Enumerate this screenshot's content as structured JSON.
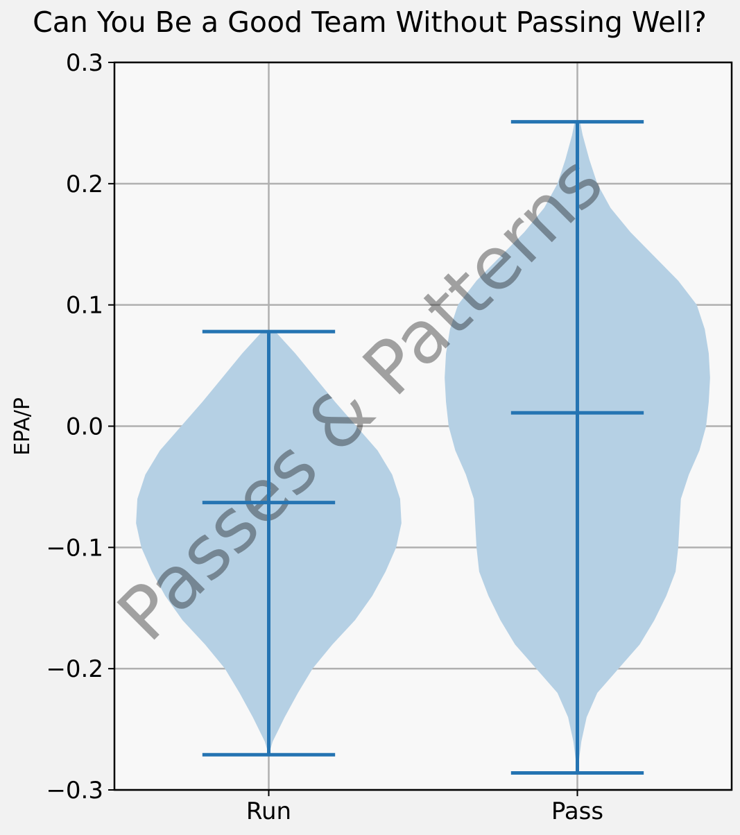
{
  "chart_data": {
    "type": "violin",
    "title": "Can You Be a Good Team Without Passing Well?",
    "xlabel": "",
    "ylabel": "EPA/P",
    "ylim": [
      -0.3,
      0.3
    ],
    "yticks": [
      0.3,
      0.2,
      0.1,
      0.0,
      -0.1,
      -0.2,
      -0.3
    ],
    "ytick_labels": [
      "0.3",
      "0.2",
      "0.1",
      "0.0",
      "−0.1",
      "−0.2",
      "−0.3"
    ],
    "categories": [
      "Run",
      "Pass"
    ],
    "grid": true,
    "series": [
      {
        "category": "Run",
        "min": -0.271,
        "max": 0.078,
        "median": -0.063,
        "density": [
          [
            -0.271,
            0.0
          ],
          [
            -0.26,
            0.03
          ],
          [
            -0.24,
            0.12
          ],
          [
            -0.22,
            0.22
          ],
          [
            -0.2,
            0.33
          ],
          [
            -0.18,
            0.48
          ],
          [
            -0.16,
            0.65
          ],
          [
            -0.14,
            0.78
          ],
          [
            -0.12,
            0.88
          ],
          [
            -0.1,
            0.96
          ],
          [
            -0.08,
            1.0
          ],
          [
            -0.06,
            0.99
          ],
          [
            -0.04,
            0.93
          ],
          [
            -0.02,
            0.82
          ],
          [
            0.0,
            0.66
          ],
          [
            0.02,
            0.5
          ],
          [
            0.04,
            0.35
          ],
          [
            0.06,
            0.2
          ],
          [
            0.078,
            0.05
          ]
        ]
      },
      {
        "category": "Pass",
        "min": -0.286,
        "max": 0.251,
        "median": 0.011,
        "density": [
          [
            -0.286,
            0.0
          ],
          [
            -0.26,
            0.03
          ],
          [
            -0.24,
            0.07
          ],
          [
            -0.22,
            0.15
          ],
          [
            -0.2,
            0.31
          ],
          [
            -0.18,
            0.47
          ],
          [
            -0.16,
            0.58
          ],
          [
            -0.14,
            0.67
          ],
          [
            -0.12,
            0.74
          ],
          [
            -0.1,
            0.76
          ],
          [
            -0.08,
            0.77
          ],
          [
            -0.06,
            0.78
          ],
          [
            -0.04,
            0.84
          ],
          [
            -0.02,
            0.92
          ],
          [
            0.0,
            0.97
          ],
          [
            0.02,
            0.99
          ],
          [
            0.04,
            1.0
          ],
          [
            0.06,
            0.99
          ],
          [
            0.08,
            0.96
          ],
          [
            0.1,
            0.9
          ],
          [
            0.12,
            0.76
          ],
          [
            0.14,
            0.58
          ],
          [
            0.16,
            0.4
          ],
          [
            0.18,
            0.25
          ],
          [
            0.2,
            0.15
          ],
          [
            0.22,
            0.09
          ],
          [
            0.24,
            0.04
          ],
          [
            0.251,
            0.02
          ]
        ]
      }
    ],
    "colors": {
      "violin_fill": "#b5d0e4",
      "stat_lines": "#2574b2",
      "grid": "#b0b0b0",
      "plot_background": "#f8f8f8",
      "figure_background": "#f2f2f2",
      "watermark": "#9e9e9e"
    },
    "watermark_text": "Passes & Patterns"
  }
}
